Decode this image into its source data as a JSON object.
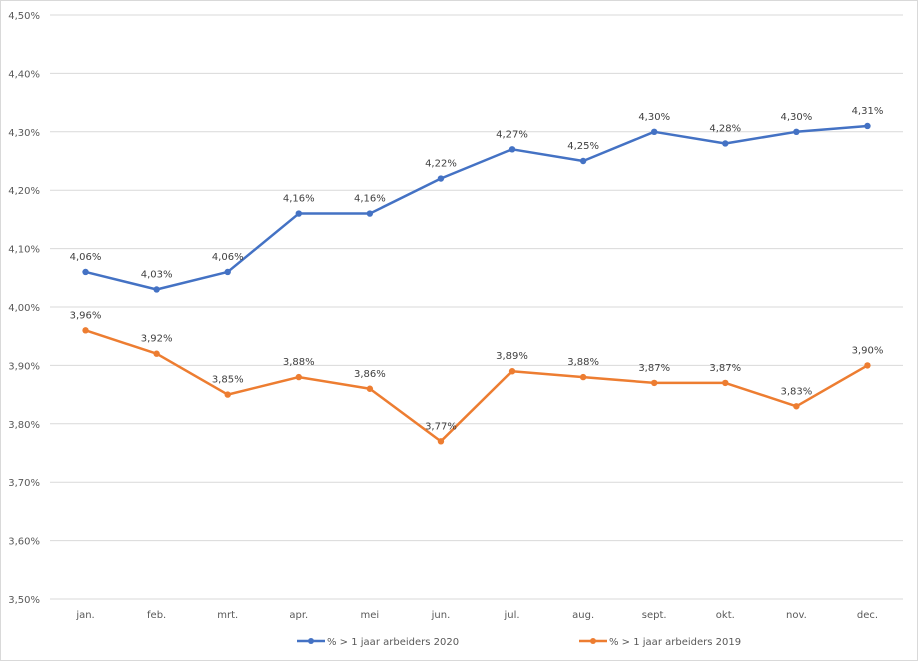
{
  "chart_data": {
    "type": "line",
    "title": "",
    "xlabel": "",
    "ylabel": "",
    "categories": [
      "jan.",
      "feb.",
      "mrt.",
      "apr.",
      "mei",
      "jun.",
      "jul.",
      "aug.",
      "sept.",
      "okt.",
      "nov.",
      "dec."
    ],
    "ylim": [
      3.5,
      4.5
    ],
    "yticks": [
      3.5,
      3.6,
      3.7,
      3.8,
      3.9,
      4.0,
      4.1,
      4.2,
      4.3,
      4.4,
      4.5
    ],
    "ytick_labels": [
      "3,50%",
      "3,60%",
      "3,70%",
      "3,80%",
      "3,90%",
      "4,00%",
      "4,10%",
      "4,20%",
      "4,30%",
      "4,40%",
      "4,50%"
    ],
    "grid": true,
    "legend_position": "bottom",
    "series": [
      {
        "name": "% > 1 jaar arbeiders 2020",
        "color": "#4472c4",
        "values": [
          4.06,
          4.03,
          4.06,
          4.16,
          4.16,
          4.22,
          4.27,
          4.25,
          4.3,
          4.28,
          4.3,
          4.31
        ],
        "labels": [
          "4,06%",
          "4,03%",
          "4,06%",
          "4,16%",
          "4,16%",
          "4,22%",
          "4,27%",
          "4,25%",
          "4,30%",
          "4,28%",
          "4,30%",
          "4,31%"
        ]
      },
      {
        "name": "% > 1 jaar arbeiders 2019",
        "color": "#ed7d31",
        "values": [
          3.96,
          3.92,
          3.85,
          3.88,
          3.86,
          3.77,
          3.89,
          3.88,
          3.87,
          3.87,
          3.83,
          3.9
        ],
        "labels": [
          "3,96%",
          "3,92%",
          "3,85%",
          "3,88%",
          "3,86%",
          "3,77%",
          "3,89%",
          "3,88%",
          "3,87%",
          "3,87%",
          "3,83%",
          "3,90%"
        ]
      }
    ]
  }
}
